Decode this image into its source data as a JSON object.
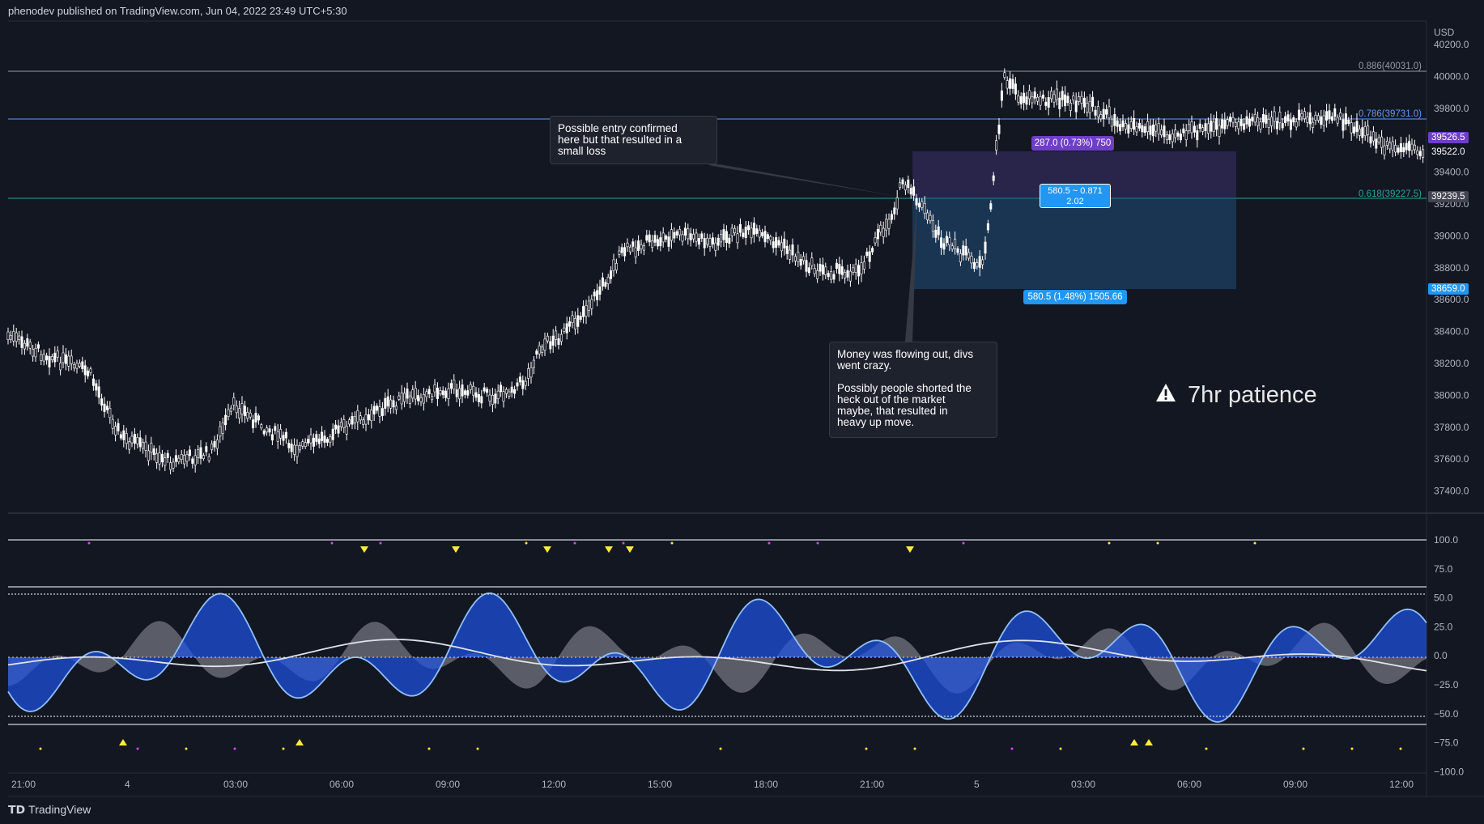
{
  "header": {
    "text": "phenodev published on TradingView.com, Jun 04, 2022 23:49 UTC+5:30"
  },
  "price_axis": {
    "currency": "USD",
    "ticks": [
      "40200.0",
      "40000.0",
      "39800.0",
      "39600.0",
      "39400.0",
      "39200.0",
      "39000.0",
      "38800.0",
      "38600.0",
      "38400.0",
      "38200.0",
      "38000.0",
      "37800.0",
      "37600.0",
      "37400.0"
    ],
    "tags": [
      {
        "value": "39526.5",
        "color": "#6f3ec7"
      },
      {
        "value": "39522.0",
        "color": "#131722"
      },
      {
        "value": "39239.5",
        "color": "#434651"
      },
      {
        "value": "38659.0",
        "color": "#2196f3"
      }
    ]
  },
  "fib_levels": [
    {
      "label": "0.886(40031.0)",
      "color": "#9598a1"
    },
    {
      "label": "0.786(39731.0)",
      "color": "#5b9cf6"
    },
    {
      "label": "0.618(39227.5)",
      "color": "#26a69a"
    }
  ],
  "position_tool": {
    "target_label": "287.0 (0.73%) 750",
    "ratio_label_line1": "580.5 ~ 0.871",
    "ratio_label_line2": "2.02",
    "stop_label": "580.5 (1.48%) 1505.66"
  },
  "callouts": [
    {
      "id": "entry",
      "text": "Possible entry confirmed\nhere but that resulted in a\nsmall loss"
    },
    {
      "id": "money",
      "text": "Money was flowing out, divs\nwent crazy.\n\nPossibly people shorted the\nheck out of the market\nmaybe, that resulted in\nheavy up move."
    }
  ],
  "annotation": {
    "text": "7hr patience",
    "icon": "warning-icon"
  },
  "oscillator_axis": {
    "ticks": [
      "100.0",
      "75.0",
      "50.0",
      "25.0",
      "0.0",
      "−25.0",
      "−50.0",
      "−75.0",
      "−100.0"
    ]
  },
  "time_axis": {
    "ticks": [
      "21:00",
      "4",
      "03:00",
      "06:00",
      "09:00",
      "12:00",
      "15:00",
      "18:00",
      "21:00",
      "5",
      "03:00",
      "06:00",
      "09:00",
      "12:00"
    ]
  },
  "footer": {
    "logo": "𝗧𝗗",
    "brand": "TradingView"
  },
  "colors": {
    "background": "#131722",
    "candle": "#ffffff",
    "oscillator_blue": "#1e53e5",
    "oscillator_gray": "#9598a1"
  }
}
